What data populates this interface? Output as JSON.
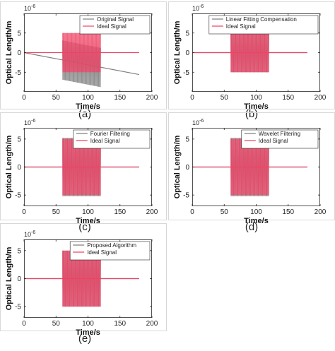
{
  "chart_data": [
    {
      "panel_label": "(a)",
      "type": "line",
      "xlabel": "Time/s",
      "ylabel": "Optical Length/m",
      "y_exponent": "10",
      "y_exponent_power": "-6",
      "xlim": [
        0,
        200
      ],
      "ylim": [
        -10,
        10
      ],
      "xticks": [
        "0",
        "50",
        "100",
        "150",
        "200"
      ],
      "yticks": [
        "-5",
        "0",
        "5"
      ],
      "grid": false,
      "legend_position": "top-right",
      "series": [
        {
          "name": "Original Signal",
          "color": "#7f7f7f",
          "trend": {
            "x": [
              0,
              180
            ],
            "y": [
              0,
              -5.6
            ]
          },
          "oscillation": {
            "x_start": 60,
            "x_end": 120,
            "amplitude": 5,
            "center_start": -1.9,
            "center_end": -3.8
          }
        },
        {
          "name": "Ideal Signal",
          "color": "#ee4466",
          "trend": {
            "x": [
              0,
              180
            ],
            "y": [
              0,
              0
            ]
          },
          "oscillation": {
            "x_start": 60,
            "x_end": 120,
            "amplitude": 5,
            "center_start": 0,
            "center_end": 0
          }
        }
      ]
    },
    {
      "panel_label": "(b)",
      "type": "line",
      "xlabel": "Time/s",
      "ylabel": "Optical Length/m",
      "y_exponent": "10",
      "y_exponent_power": "-6",
      "xlim": [
        0,
        200
      ],
      "ylim": [
        -10,
        10
      ],
      "xticks": [
        "0",
        "50",
        "100",
        "150",
        "200"
      ],
      "yticks": [
        "-5",
        "0",
        "5"
      ],
      "grid": false,
      "legend_position": "top-right",
      "series": [
        {
          "name": "Linear Fitting Compensation",
          "color": "#7f7f7f",
          "trend": {
            "x": [
              0,
              180
            ],
            "y": [
              0,
              0
            ]
          },
          "oscillation": {
            "x_start": 60,
            "x_end": 120,
            "amplitude": 5,
            "center_start": 0,
            "center_end": 0
          }
        },
        {
          "name": "Ideal Signal",
          "color": "#ee4466",
          "trend": {
            "x": [
              0,
              180
            ],
            "y": [
              0,
              0
            ]
          },
          "oscillation": {
            "x_start": 60,
            "x_end": 120,
            "amplitude": 5,
            "center_start": 0,
            "center_end": 0
          }
        }
      ]
    },
    {
      "panel_label": "(c)",
      "type": "line",
      "xlabel": "Time/s",
      "ylabel": "Optical Length/m",
      "y_exponent": "10",
      "y_exponent_power": "-6",
      "xlim": [
        0,
        200
      ],
      "ylim": [
        -7,
        7
      ],
      "xticks": [
        "0",
        "50",
        "100",
        "150",
        "200"
      ],
      "yticks": [
        "-5",
        "0",
        "5"
      ],
      "grid": false,
      "legend_position": "top-right",
      "series": [
        {
          "name": "Fourier Filtering",
          "color": "#7f7f7f",
          "trend": {
            "x": [
              0,
              180
            ],
            "y": [
              0,
              0
            ]
          },
          "oscillation": {
            "x_start": 60,
            "x_end": 120,
            "amplitude": 5.2,
            "center_start": 0,
            "center_end": 0
          }
        },
        {
          "name": "Ideal Signal",
          "color": "#ee4466",
          "trend": {
            "x": [
              0,
              180
            ],
            "y": [
              0,
              0
            ]
          },
          "oscillation": {
            "x_start": 60,
            "x_end": 120,
            "amplitude": 5,
            "center_start": 0,
            "center_end": 0
          }
        }
      ]
    },
    {
      "panel_label": "(d)",
      "type": "line",
      "xlabel": "Time/s",
      "ylabel": "Optical Length/m",
      "y_exponent": "10",
      "y_exponent_power": "-6",
      "xlim": [
        0,
        200
      ],
      "ylim": [
        -7,
        7
      ],
      "xticks": [
        "0",
        "50",
        "100",
        "150",
        "200"
      ],
      "yticks": [
        "-5",
        "0",
        "5"
      ],
      "grid": false,
      "legend_position": "top-right",
      "series": [
        {
          "name": "Wavelet Filtering",
          "color": "#7f7f7f",
          "trend": {
            "x": [
              0,
              180
            ],
            "y": [
              0,
              0
            ]
          },
          "oscillation": {
            "x_start": 60,
            "x_end": 120,
            "amplitude": 5.2,
            "center_start": 0,
            "center_end": 0
          }
        },
        {
          "name": "Ideal Signal",
          "color": "#ee4466",
          "trend": {
            "x": [
              0,
              180
            ],
            "y": [
              0,
              0
            ]
          },
          "oscillation": {
            "x_start": 60,
            "x_end": 120,
            "amplitude": 5,
            "center_start": 0,
            "center_end": 0
          }
        }
      ]
    },
    {
      "panel_label": "(e)",
      "type": "line",
      "xlabel": "Time/s",
      "ylabel": "Optical Length/m",
      "y_exponent": "10",
      "y_exponent_power": "-6",
      "xlim": [
        0,
        200
      ],
      "ylim": [
        -7,
        7
      ],
      "xticks": [
        "0",
        "50",
        "100",
        "150",
        "200"
      ],
      "yticks": [
        "-5",
        "0",
        "5"
      ],
      "grid": false,
      "legend_position": "top-right",
      "series": [
        {
          "name": "Proposed Algorithm",
          "color": "#7f7f7f",
          "trend": {
            "x": [
              0,
              180
            ],
            "y": [
              0,
              0
            ]
          },
          "oscillation": {
            "x_start": 60,
            "x_end": 120,
            "amplitude": 5,
            "center_start": 0,
            "center_end": 0
          }
        },
        {
          "name": "Ideal Signal",
          "color": "#ee4466",
          "trend": {
            "x": [
              0,
              180
            ],
            "y": [
              0,
              0
            ]
          },
          "oscillation": {
            "x_start": 60,
            "x_end": 120,
            "amplitude": 5,
            "center_start": 0,
            "center_end": 0
          }
        }
      ]
    }
  ]
}
